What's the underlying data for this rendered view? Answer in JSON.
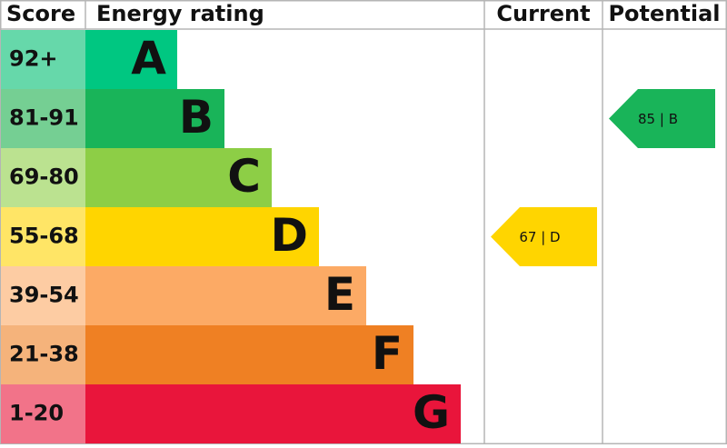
{
  "header": {
    "score": "Score",
    "rating": "Energy rating",
    "current": "Current",
    "potential": "Potential"
  },
  "rows": [
    {
      "score": "92+",
      "letter": "A",
      "color": "#00c781",
      "score_color": "#66d8aa"
    },
    {
      "score": "81-91",
      "letter": "B",
      "color": "#19b459",
      "score_color": "#75cf93"
    },
    {
      "score": "69-80",
      "letter": "C",
      "color": "#8dce46",
      "score_color": "#bbe290"
    },
    {
      "score": "55-68",
      "letter": "D",
      "color": "#ffd500",
      "score_color": "#ffe566"
    },
    {
      "score": "39-54",
      "letter": "E",
      "color": "#fcaa65",
      "score_color": "#fdcca3"
    },
    {
      "score": "21-38",
      "letter": "F",
      "color": "#ef8023",
      "score_color": "#f5b37b"
    },
    {
      "score": "1-20",
      "letter": "G",
      "color": "#e9153b",
      "score_color": "#f27389"
    }
  ],
  "current": {
    "row": "D",
    "text": "67 | D"
  },
  "potential": {
    "row": "B",
    "text": "85 | B"
  }
}
